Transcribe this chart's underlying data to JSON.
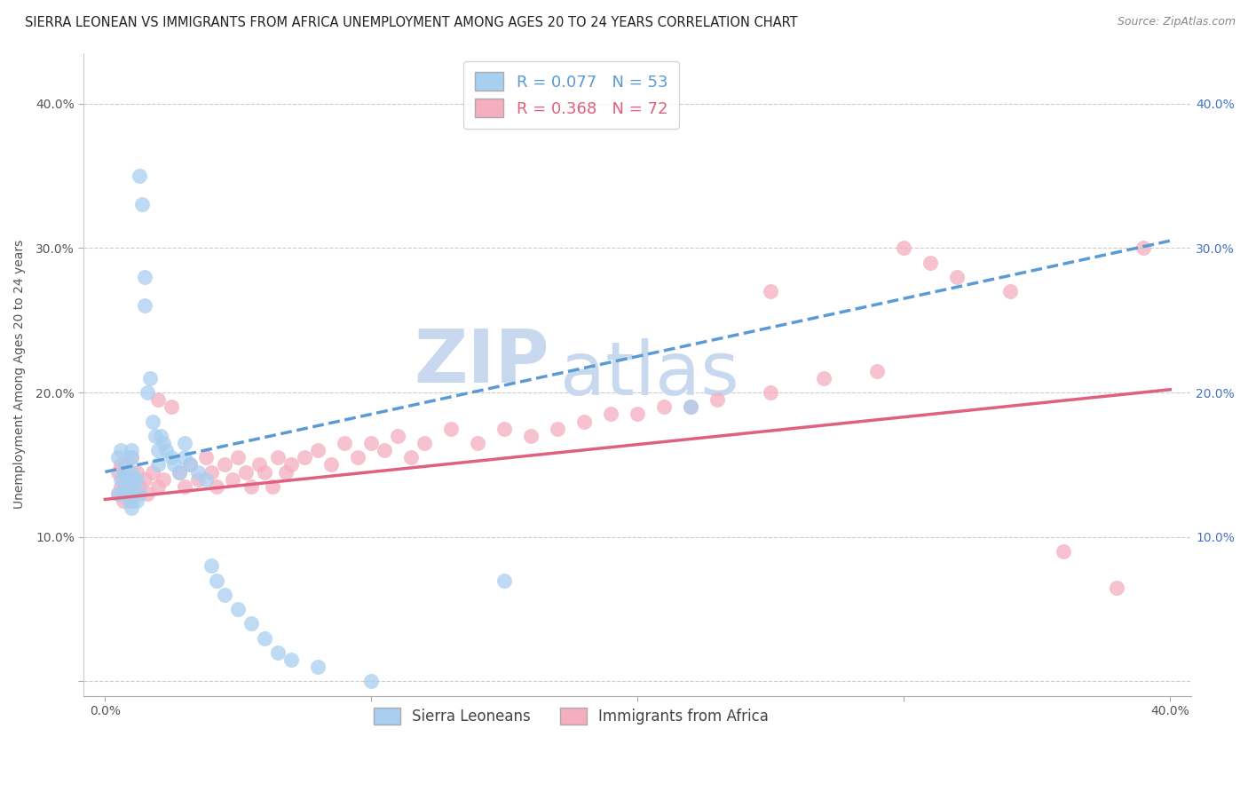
{
  "title": "SIERRA LEONEAN VS IMMIGRANTS FROM AFRICA UNEMPLOYMENT AMONG AGES 20 TO 24 YEARS CORRELATION CHART",
  "source": "Source: ZipAtlas.com",
  "ylabel": "Unemployment Among Ages 20 to 24 years",
  "xlim": [
    0.0,
    0.4
  ],
  "ylim": [
    0.0,
    0.42
  ],
  "watermark_line1": "ZIP",
  "watermark_line2": "atlas",
  "legend_r1": "R = 0.077",
  "legend_n1": "N = 53",
  "legend_r2": "R = 0.368",
  "legend_n2": "N = 72",
  "series1_color": "#a8cff0",
  "series2_color": "#f5aec0",
  "trendline1_color": "#5b9bd5",
  "trendline2_color": "#e06080",
  "series1_label": "Sierra Leoneans",
  "series2_label": "Immigrants from Africa",
  "trendline1_x0": 0.0,
  "trendline1_y0": 0.145,
  "trendline1_x1": 0.4,
  "trendline1_y1": 0.305,
  "trendline2_x0": 0.0,
  "trendline2_y0": 0.126,
  "trendline2_x1": 0.4,
  "trendline2_y1": 0.202,
  "grid_color": "#cccccc",
  "background_color": "#ffffff",
  "title_fontsize": 10.5,
  "axis_label_fontsize": 10,
  "tick_fontsize": 10,
  "legend_fontsize": 12,
  "watermark_color": "#c8d8ee",
  "watermark_fontsize_zip": 60,
  "watermark_fontsize_atlas": 60,
  "s1_x": [
    0.005,
    0.005,
    0.006,
    0.006,
    0.007,
    0.007,
    0.008,
    0.008,
    0.009,
    0.009,
    0.01,
    0.01,
    0.01,
    0.01,
    0.01,
    0.011,
    0.011,
    0.012,
    0.012,
    0.013,
    0.013,
    0.014,
    0.015,
    0.015,
    0.016,
    0.017,
    0.018,
    0.019,
    0.02,
    0.02,
    0.021,
    0.022,
    0.023,
    0.025,
    0.026,
    0.028,
    0.03,
    0.03,
    0.032,
    0.035,
    0.038,
    0.04,
    0.042,
    0.045,
    0.05,
    0.055,
    0.06,
    0.065,
    0.07,
    0.08,
    0.1,
    0.15,
    0.22
  ],
  "s1_y": [
    0.13,
    0.155,
    0.14,
    0.16,
    0.13,
    0.145,
    0.135,
    0.15,
    0.125,
    0.14,
    0.12,
    0.135,
    0.145,
    0.155,
    0.16,
    0.13,
    0.14,
    0.125,
    0.14,
    0.13,
    0.35,
    0.33,
    0.26,
    0.28,
    0.2,
    0.21,
    0.18,
    0.17,
    0.15,
    0.16,
    0.17,
    0.165,
    0.16,
    0.155,
    0.15,
    0.145,
    0.155,
    0.165,
    0.15,
    0.145,
    0.14,
    0.08,
    0.07,
    0.06,
    0.05,
    0.04,
    0.03,
    0.02,
    0.015,
    0.01,
    0.0,
    0.07,
    0.19
  ],
  "s2_x": [
    0.005,
    0.005,
    0.006,
    0.006,
    0.007,
    0.007,
    0.008,
    0.008,
    0.009,
    0.01,
    0.01,
    0.01,
    0.011,
    0.012,
    0.013,
    0.015,
    0.016,
    0.018,
    0.02,
    0.02,
    0.022,
    0.025,
    0.028,
    0.03,
    0.032,
    0.035,
    0.038,
    0.04,
    0.042,
    0.045,
    0.048,
    0.05,
    0.053,
    0.055,
    0.058,
    0.06,
    0.063,
    0.065,
    0.068,
    0.07,
    0.075,
    0.08,
    0.085,
    0.09,
    0.095,
    0.1,
    0.105,
    0.11,
    0.115,
    0.12,
    0.13,
    0.14,
    0.15,
    0.16,
    0.17,
    0.18,
    0.19,
    0.2,
    0.21,
    0.22,
    0.23,
    0.25,
    0.27,
    0.29,
    0.3,
    0.32,
    0.34,
    0.36,
    0.38,
    0.39,
    0.25,
    0.31
  ],
  "s2_y": [
    0.13,
    0.145,
    0.135,
    0.15,
    0.125,
    0.14,
    0.13,
    0.145,
    0.135,
    0.125,
    0.14,
    0.155,
    0.13,
    0.145,
    0.135,
    0.14,
    0.13,
    0.145,
    0.135,
    0.195,
    0.14,
    0.19,
    0.145,
    0.135,
    0.15,
    0.14,
    0.155,
    0.145,
    0.135,
    0.15,
    0.14,
    0.155,
    0.145,
    0.135,
    0.15,
    0.145,
    0.135,
    0.155,
    0.145,
    0.15,
    0.155,
    0.16,
    0.15,
    0.165,
    0.155,
    0.165,
    0.16,
    0.17,
    0.155,
    0.165,
    0.175,
    0.165,
    0.175,
    0.17,
    0.175,
    0.18,
    0.185,
    0.185,
    0.19,
    0.19,
    0.195,
    0.2,
    0.21,
    0.215,
    0.3,
    0.28,
    0.27,
    0.09,
    0.065,
    0.3,
    0.27,
    0.29
  ]
}
